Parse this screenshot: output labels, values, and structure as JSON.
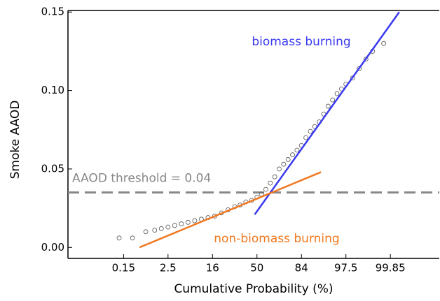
{
  "chart_data": {
    "type": "scatter",
    "x_label": "Cumulative Probability (%)",
    "y_label": "Smoke AAOD",
    "xlim": [
      -4.25,
      4.1
    ],
    "ylim": [
      -0.007,
      0.151
    ],
    "xticks": [
      {
        "value": -3,
        "label": "0.15"
      },
      {
        "value": -2,
        "label": "2.5"
      },
      {
        "value": -1,
        "label": "16"
      },
      {
        "value": 0,
        "label": "50"
      },
      {
        "value": 1,
        "label": "84"
      },
      {
        "value": 2,
        "label": "97.5"
      },
      {
        "value": 3,
        "label": "99.85"
      }
    ],
    "yticks": [
      {
        "value": 0,
        "label": "0.00"
      },
      {
        "value": 0.05,
        "label": "0.05"
      },
      {
        "value": 0.1,
        "label": "0.10"
      },
      {
        "value": 0.15,
        "label": "0.15"
      }
    ],
    "series": [
      {
        "color": "#555555",
        "x": [
          -3.1,
          -2.8,
          -2.5,
          -2.3,
          -2.15,
          -2.0,
          -1.85,
          -1.7,
          -1.55,
          -1.4,
          -1.25,
          -1.1,
          -0.95,
          -0.8,
          -0.65,
          -0.5,
          -0.38,
          -0.25,
          -0.12,
          0.0,
          0.1,
          0.2,
          0.3,
          0.4,
          0.5,
          0.6,
          0.7,
          0.8,
          0.9,
          1.0,
          1.1,
          1.2,
          1.3,
          1.4,
          1.5,
          1.6,
          1.7,
          1.8,
          1.9,
          2.0,
          2.15,
          2.3,
          2.45,
          2.6,
          2.85
        ],
        "values": [
          0.006,
          0.006,
          0.01,
          0.011,
          0.012,
          0.013,
          0.014,
          0.015,
          0.016,
          0.017,
          0.018,
          0.019,
          0.02,
          0.022,
          0.024,
          0.026,
          0.027,
          0.029,
          0.03,
          0.032,
          0.034,
          0.037,
          0.041,
          0.045,
          0.05,
          0.053,
          0.056,
          0.059,
          0.062,
          0.065,
          0.07,
          0.074,
          0.077,
          0.08,
          0.085,
          0.09,
          0.094,
          0.098,
          0.101,
          0.104,
          0.108,
          0.114,
          0.12,
          0.125,
          0.13
        ]
      },
      {
        "name": "biomass burning",
        "color": "#3a3af0",
        "x": [
          -0.05,
          3.2
        ],
        "values": [
          0.021,
          0.15
        ]
      },
      {
        "name": "non-biomass burning",
        "color": "#f07820",
        "x": [
          -2.64,
          1.44
        ],
        "values": [
          0.0,
          0.048
        ]
      }
    ],
    "threshold": {
      "value": 0.035,
      "label": "AAOD threshold = 0.04",
      "color": "#888888"
    }
  }
}
